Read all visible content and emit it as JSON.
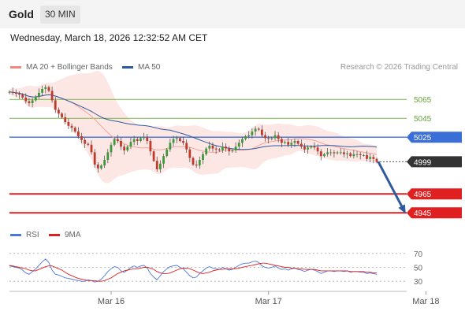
{
  "header": {
    "title": "Gold",
    "timeframe": "30 MIN"
  },
  "datetime": "Wednesday, March 18, 2026 12:32:52 AM CET",
  "legend": {
    "ma": {
      "label": "MA 20 + Bollinger Bands",
      "color": "#f08a80"
    },
    "ma50": {
      "label": "MA 50",
      "color": "#2e5a9e"
    },
    "rsi": {
      "label": "RSI",
      "color": "#4a78d8"
    },
    "ma9": {
      "label": "9MA",
      "color": "#e02020"
    }
  },
  "copyright": "Research © 2026 Trading Central",
  "colors": {
    "up": "#3a9a3a",
    "down": "#c0392b",
    "pivot": "#3b6fd8",
    "support": "#e02020",
    "resistance": "#7ab648",
    "arrow": "#2e5a9e"
  },
  "chart_data": [
    {
      "type": "candlestick",
      "ylim": [
        4936,
        5086
      ],
      "x_ticks": [
        {
          "label": "Mar 16",
          "index": 31
        },
        {
          "label": "Mar 17",
          "index": 79
        },
        {
          "label": "Mar 18",
          "index": 127
        }
      ],
      "levels": [
        {
          "label": "5065",
          "value": 5065,
          "kind": "resistance"
        },
        {
          "label": "5045",
          "value": 5045,
          "kind": "resistance"
        },
        {
          "label": "5025",
          "value": 5025,
          "kind": "pivot"
        },
        {
          "label": "4999",
          "value": 4999,
          "kind": "last"
        },
        {
          "label": "4965",
          "value": 4965,
          "kind": "support"
        },
        {
          "label": "4945",
          "value": 4945,
          "kind": "support"
        }
      ],
      "forecast": {
        "from": 4999,
        "to": 4945
      },
      "closes": [
        5073,
        5072,
        5071,
        5070,
        5067,
        5063,
        5061,
        5064,
        5068,
        5072,
        5076,
        5078,
        5074,
        5064,
        5054,
        5050,
        5046,
        5041,
        5037,
        5035,
        5031,
        5026,
        5022,
        5018,
        5017,
        5009,
        4996,
        4992,
        4995,
        5001,
        5009,
        5017,
        5023,
        5021,
        5015,
        5011,
        5015,
        5020,
        5023,
        5021,
        5024,
        5025,
        5021,
        5010,
        5000,
        4991,
        4997,
        5005,
        5012,
        5019,
        5023,
        5024,
        5021,
        5019,
        5012,
        5003,
        4996,
        4995,
        5001,
        5007,
        5013,
        5016,
        5013,
        5012,
        5011,
        5015,
        5013,
        5010,
        5011,
        5015,
        5019,
        5023,
        5026,
        5027,
        5031,
        5034,
        5033,
        5027,
        5024,
        5023,
        5024,
        5027,
        5023,
        5019,
        5020,
        5017,
        5019,
        5021,
        5018,
        5015,
        5012,
        5014,
        5015,
        5014,
        5010,
        5005,
        5007,
        5009,
        5009,
        5008,
        5009,
        5009,
        5007,
        5008,
        5005,
        5007,
        5007,
        5006,
        5006,
        5002,
        5004,
        5002,
        4999
      ],
      "opens": [
        5072,
        5073,
        5072,
        5071,
        5070,
        5067,
        5063,
        5061,
        5064,
        5068,
        5072,
        5076,
        5078,
        5074,
        5064,
        5054,
        5050,
        5046,
        5041,
        5037,
        5035,
        5031,
        5026,
        5022,
        5018,
        5017,
        5009,
        4996,
        4992,
        4995,
        5001,
        5009,
        5017,
        5023,
        5021,
        5015,
        5011,
        5015,
        5020,
        5023,
        5021,
        5024,
        5025,
        5021,
        5010,
        5000,
        4991,
        4997,
        5005,
        5012,
        5019,
        5023,
        5024,
        5021,
        5019,
        5012,
        5003,
        4996,
        4995,
        5001,
        5007,
        5013,
        5016,
        5013,
        5012,
        5011,
        5015,
        5013,
        5010,
        5011,
        5015,
        5019,
        5023,
        5026,
        5027,
        5031,
        5034,
        5033,
        5027,
        5024,
        5023,
        5024,
        5027,
        5023,
        5019,
        5020,
        5017,
        5019,
        5021,
        5018,
        5015,
        5012,
        5014,
        5015,
        5014,
        5010,
        5005,
        5007,
        5009,
        5009,
        5008,
        5009,
        5009,
        5007,
        5008,
        5005,
        5007,
        5007,
        5006,
        5006,
        5002,
        5004,
        5002
      ],
      "rsi": {
        "ylim": [
          20,
          80
        ],
        "ticks": [
          70,
          50,
          30
        ],
        "values": [
          52,
          51,
          50,
          49,
          46,
          42,
          40,
          44,
          48,
          53,
          58,
          62,
          57,
          46,
          40,
          39,
          37,
          35,
          34,
          33,
          32,
          31,
          30,
          30,
          32,
          31,
          29,
          30,
          33,
          38,
          44,
          48,
          51,
          50,
          45,
          43,
          46,
          50,
          52,
          50,
          52,
          53,
          49,
          41,
          36,
          32,
          38,
          44,
          48,
          51,
          52,
          53,
          50,
          48,
          43,
          38,
          35,
          36,
          41,
          45,
          49,
          51,
          49,
          48,
          47,
          50,
          48,
          46,
          47,
          50,
          53,
          55,
          56,
          56,
          58,
          59,
          57,
          52,
          50,
          49,
          50,
          52,
          49,
          47,
          48,
          46,
          48,
          49,
          47,
          46,
          44,
          46,
          47,
          46,
          44,
          41,
          43,
          45,
          45,
          44,
          45,
          45,
          44,
          45,
          43,
          44,
          44,
          43,
          43,
          41,
          42,
          41,
          40
        ],
        "ma9": [
          53,
          52,
          51,
          50,
          49,
          48,
          46,
          45,
          45,
          47,
          49,
          51,
          52,
          52,
          50,
          48,
          46,
          43,
          40,
          38,
          36,
          34,
          33,
          32,
          31,
          31,
          31,
          30,
          30,
          31,
          33,
          35,
          38,
          41,
          43,
          45,
          46,
          47,
          48,
          48,
          49,
          50,
          50,
          49,
          47,
          44,
          42,
          41,
          41,
          42,
          44,
          46,
          48,
          49,
          49,
          48,
          46,
          44,
          42,
          41,
          42,
          43,
          45,
          46,
          47,
          47,
          48,
          48,
          48,
          48,
          49,
          50,
          51,
          52,
          53,
          54,
          55,
          56,
          56,
          55,
          54,
          53,
          52,
          51,
          50,
          50,
          49,
          49,
          48,
          48,
          47,
          47,
          47,
          47,
          46,
          45,
          45,
          45,
          45,
          45,
          45,
          45,
          45,
          45,
          44,
          44,
          44,
          44,
          44,
          43,
          43,
          42,
          42
        ]
      }
    }
  ]
}
